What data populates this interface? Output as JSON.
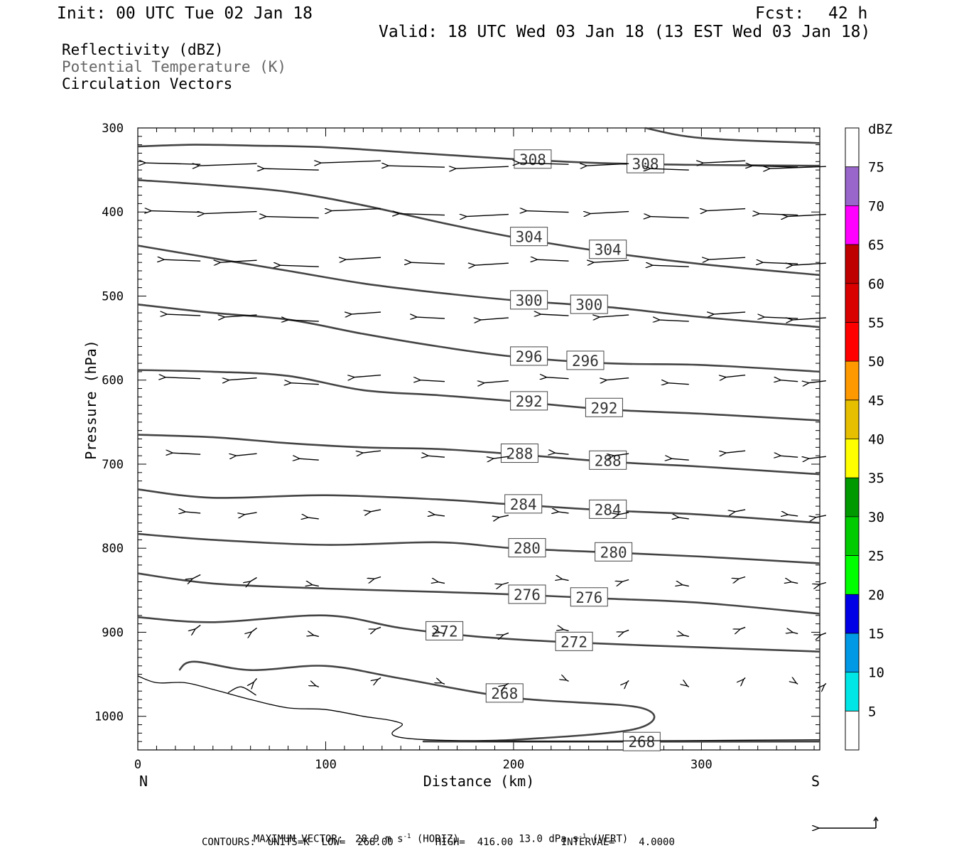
{
  "header": {
    "init": "Init: 00 UTC Tue 02 Jan 18",
    "fcst_label": "Fcst:",
    "fcst_value": "42 h",
    "valid": "Valid: 18 UTC Wed 03 Jan 18 (13 EST Wed 03 Jan 18)"
  },
  "legend": {
    "line1": "Reflectivity (dBZ)",
    "line2": "Potential Temperature (K)",
    "line3": "Circulation Vectors",
    "line2_color": "#666666"
  },
  "footer": {
    "max_vector_label": "MAXIMUM VECTOR:",
    "max_horiz": "28.9 m s",
    "horiz_tag": "(HORIZ)",
    "max_vert": "13.0 dPa s",
    "vert_tag": "(VERT)",
    "exponent": "-1",
    "contours": "CONTOURS:  UNITS=K  LOW=  268.00       HIGH=  416.00        INTERVAL=    4.0000"
  },
  "chart_data": {
    "type": "line",
    "xlabel": "Distance (km)",
    "ylabel": "Pressure (hPa)",
    "xlim": [
      0,
      363
    ],
    "ylim": [
      300,
      1040
    ],
    "x_ticks": [
      0,
      100,
      200,
      300
    ],
    "y_ticks": [
      300,
      400,
      500,
      600,
      700,
      800,
      900,
      1000
    ],
    "x_end_left": "N",
    "x_end_right": "S",
    "grid": false,
    "colorbar": {
      "unit": "dBZ",
      "labels": [
        "5",
        "10",
        "15",
        "20",
        "25",
        "30",
        "35",
        "40",
        "45",
        "50",
        "55",
        "60",
        "65",
        "70",
        "75"
      ],
      "colors": [
        "#ffffff",
        "#00e6e6",
        "#0099e6",
        "#0000e6",
        "#00ff00",
        "#00cc00",
        "#009900",
        "#ffff00",
        "#e6bf00",
        "#ff9900",
        "#ff0000",
        "#d90000",
        "#bf0000",
        "#ff00ff",
        "#9966cc",
        "#ffffff"
      ]
    },
    "isentropes": [
      {
        "theta": "308",
        "points": [
          [
            0,
            322
          ],
          [
            30,
            320
          ],
          [
            60,
            321
          ],
          [
            100,
            323
          ],
          [
            150,
            330
          ],
          [
            200,
            337
          ],
          [
            250,
            342
          ],
          [
            300,
            344
          ],
          [
            363,
            345
          ]
        ],
        "labels_at": [
          200,
          260
        ]
      },
      {
        "theta": "308b",
        "points": [
          [
            270,
            300
          ],
          [
            300,
            312
          ],
          [
            363,
            318
          ]
        ]
      },
      {
        "theta": "304",
        "points": [
          [
            0,
            362
          ],
          [
            40,
            368
          ],
          [
            80,
            376
          ],
          [
            120,
            392
          ],
          [
            160,
            412
          ],
          [
            200,
            430
          ],
          [
            250,
            448
          ],
          [
            300,
            462
          ],
          [
            363,
            475
          ]
        ],
        "labels_at": [
          198,
          240
        ]
      },
      {
        "theta": "300",
        "points": [
          [
            0,
            440
          ],
          [
            40,
            455
          ],
          [
            80,
            470
          ],
          [
            120,
            485
          ],
          [
            160,
            496
          ],
          [
            200,
            505
          ],
          [
            250,
            513
          ],
          [
            300,
            525
          ],
          [
            363,
            537
          ]
        ],
        "labels_at": [
          198,
          230
        ]
      },
      {
        "theta": "296",
        "points": [
          [
            0,
            510
          ],
          [
            40,
            520
          ],
          [
            80,
            528
          ],
          [
            120,
            545
          ],
          [
            160,
            560
          ],
          [
            200,
            572
          ],
          [
            250,
            580
          ],
          [
            300,
            582
          ],
          [
            363,
            590
          ]
        ],
        "labels_at": [
          198,
          228
        ]
      },
      {
        "theta": "292",
        "points": [
          [
            0,
            588
          ],
          [
            40,
            590
          ],
          [
            80,
            595
          ],
          [
            120,
            612
          ],
          [
            160,
            618
          ],
          [
            200,
            625
          ],
          [
            250,
            635
          ],
          [
            300,
            640
          ],
          [
            363,
            648
          ]
        ],
        "labels_at": [
          198,
          238
        ]
      },
      {
        "theta": "288",
        "points": [
          [
            0,
            665
          ],
          [
            40,
            668
          ],
          [
            80,
            675
          ],
          [
            120,
            680
          ],
          [
            160,
            682
          ],
          [
            200,
            688
          ],
          [
            250,
            697
          ],
          [
            300,
            703
          ],
          [
            363,
            712
          ]
        ],
        "labels_at": [
          193,
          240
        ]
      },
      {
        "theta": "284",
        "points": [
          [
            0,
            730
          ],
          [
            40,
            740
          ],
          [
            100,
            737
          ],
          [
            160,
            742
          ],
          [
            200,
            748
          ],
          [
            250,
            755
          ],
          [
            300,
            760
          ],
          [
            363,
            770
          ]
        ],
        "labels_at": [
          195,
          240
        ]
      },
      {
        "theta": "280",
        "points": [
          [
            0,
            783
          ],
          [
            40,
            790
          ],
          [
            100,
            796
          ],
          [
            160,
            793
          ],
          [
            200,
            800
          ],
          [
            250,
            805
          ],
          [
            300,
            810
          ],
          [
            363,
            818
          ]
        ],
        "labels_at": [
          197,
          243
        ]
      },
      {
        "theta": "276",
        "points": [
          [
            0,
            830
          ],
          [
            40,
            842
          ],
          [
            100,
            848
          ],
          [
            160,
            852
          ],
          [
            200,
            855
          ],
          [
            250,
            860
          ],
          [
            300,
            865
          ],
          [
            363,
            878
          ]
        ],
        "labels_at": [
          197,
          230
        ]
      },
      {
        "theta": "272",
        "points": [
          [
            0,
            882
          ],
          [
            40,
            888
          ],
          [
            100,
            880
          ],
          [
            140,
            895
          ],
          [
            180,
            905
          ],
          [
            230,
            912
          ],
          [
            300,
            918
          ],
          [
            363,
            923
          ]
        ],
        "labels_at": [
          153,
          222
        ]
      },
      {
        "theta": "268",
        "points": [
          [
            22,
            945
          ],
          [
            30,
            935
          ],
          [
            60,
            945
          ],
          [
            100,
            940
          ],
          [
            140,
            955
          ],
          [
            200,
            978
          ],
          [
            268,
            990
          ],
          [
            265,
            1015
          ],
          [
            200,
            1028
          ],
          [
            160,
            1030
          ],
          [
            363,
            1030
          ]
        ],
        "labels_at": [
          185,
          258
        ]
      }
    ],
    "isentrope_label_values": [
      "308",
      "308",
      "304",
      "304",
      "300",
      "300",
      "296",
      "296",
      "292",
      "292",
      "288",
      "288",
      "284",
      "284",
      "280",
      "280",
      "276",
      "276",
      "272",
      "272",
      "268",
      "268"
    ]
  }
}
